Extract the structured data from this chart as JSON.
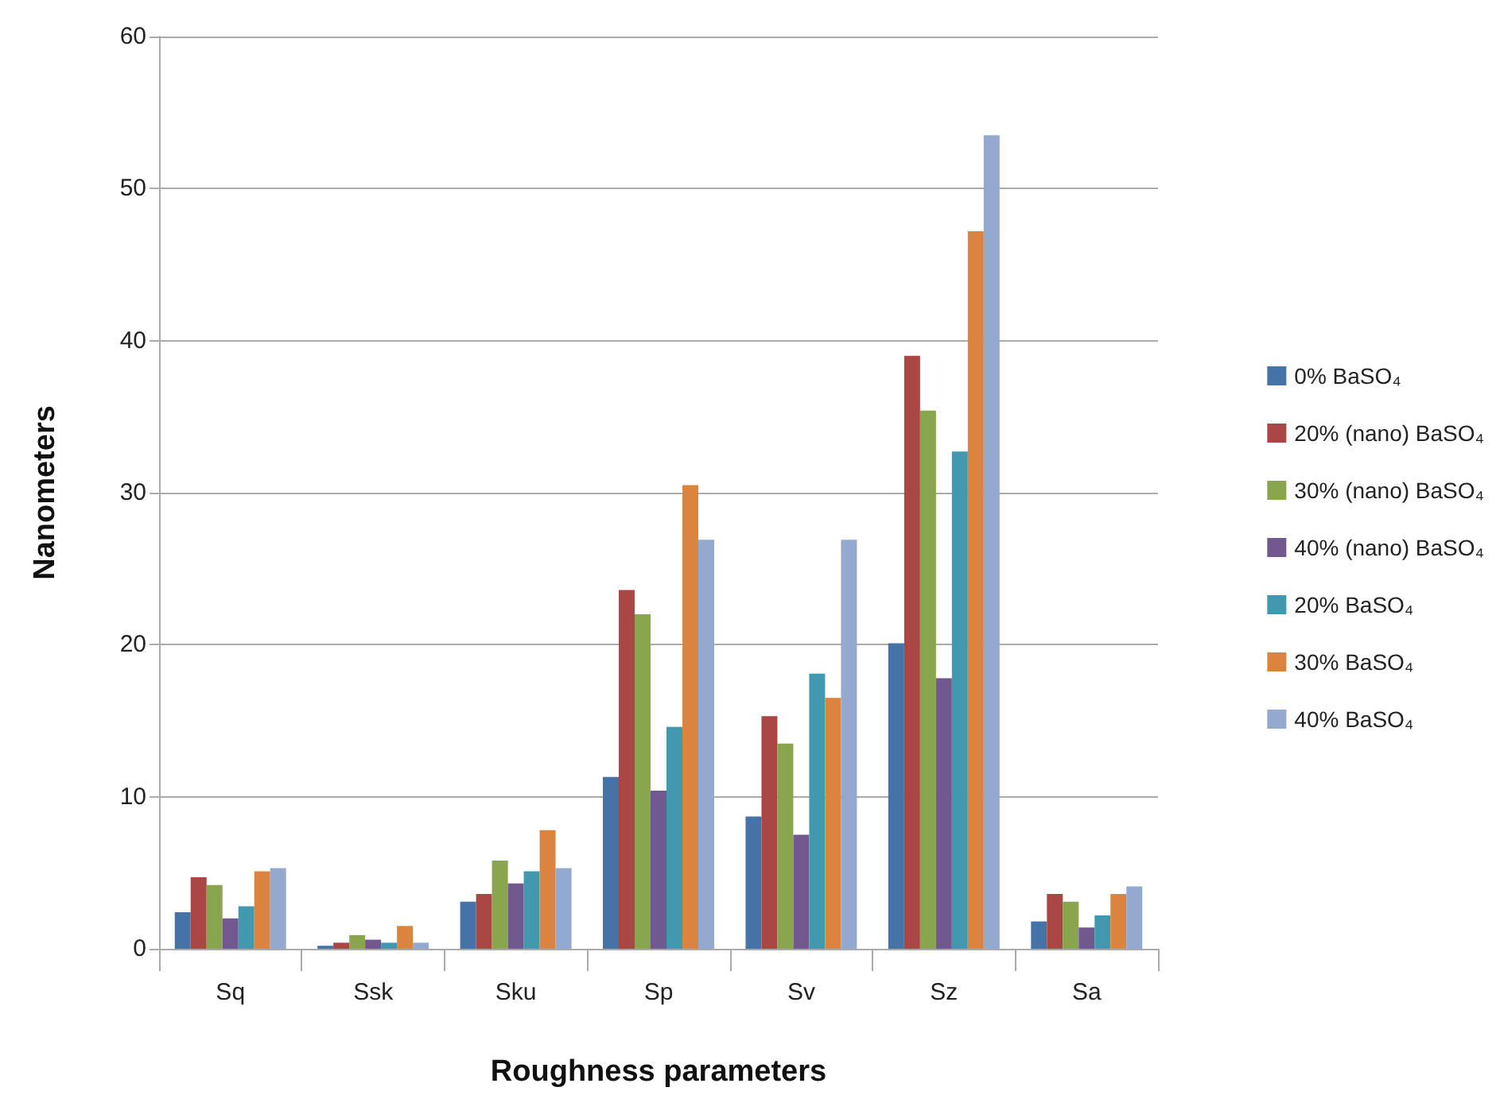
{
  "chart_data": {
    "type": "bar",
    "xlabel": "Roughness parameters",
    "ylabel": "Nanometers",
    "categories": [
      "Sq",
      "Ssk",
      "Sku",
      "Sp",
      "Sv",
      "Sz",
      "Sa"
    ],
    "series": [
      {
        "name": "0% BaSO₄",
        "color": "#4572a7",
        "values": [
          2.4,
          0.2,
          3.1,
          11.3,
          8.7,
          20.1,
          1.8
        ]
      },
      {
        "name": "20% (nano) BaSO₄",
        "color": "#aa4643",
        "values": [
          4.7,
          0.4,
          3.6,
          23.6,
          15.3,
          39.0,
          3.6
        ]
      },
      {
        "name": "30% (nano) BaSO₄",
        "color": "#89a54e",
        "values": [
          4.2,
          0.9,
          5.8,
          22.0,
          13.5,
          35.4,
          3.1
        ]
      },
      {
        "name": "40% (nano) BaSO₄",
        "color": "#71588f",
        "values": [
          2.0,
          0.6,
          4.3,
          10.4,
          7.5,
          17.8,
          1.4
        ]
      },
      {
        "name": "20% BaSO₄",
        "color": "#4198af",
        "values": [
          2.8,
          0.4,
          5.1,
          14.6,
          18.1,
          32.7,
          2.2
        ]
      },
      {
        "name": "30% BaSO₄",
        "color": "#db843d",
        "values": [
          5.1,
          1.5,
          7.8,
          30.5,
          16.5,
          47.2,
          3.6
        ]
      },
      {
        "name": "40% BaSO₄",
        "color": "#93a9cf",
        "values": [
          5.3,
          0.4,
          5.3,
          26.9,
          26.9,
          53.5,
          4.1
        ]
      }
    ],
    "ylim": [
      0,
      60
    ],
    "yticks": [
      0,
      10,
      20,
      30,
      40,
      50,
      60
    ],
    "grid": "y",
    "legend": "right"
  }
}
